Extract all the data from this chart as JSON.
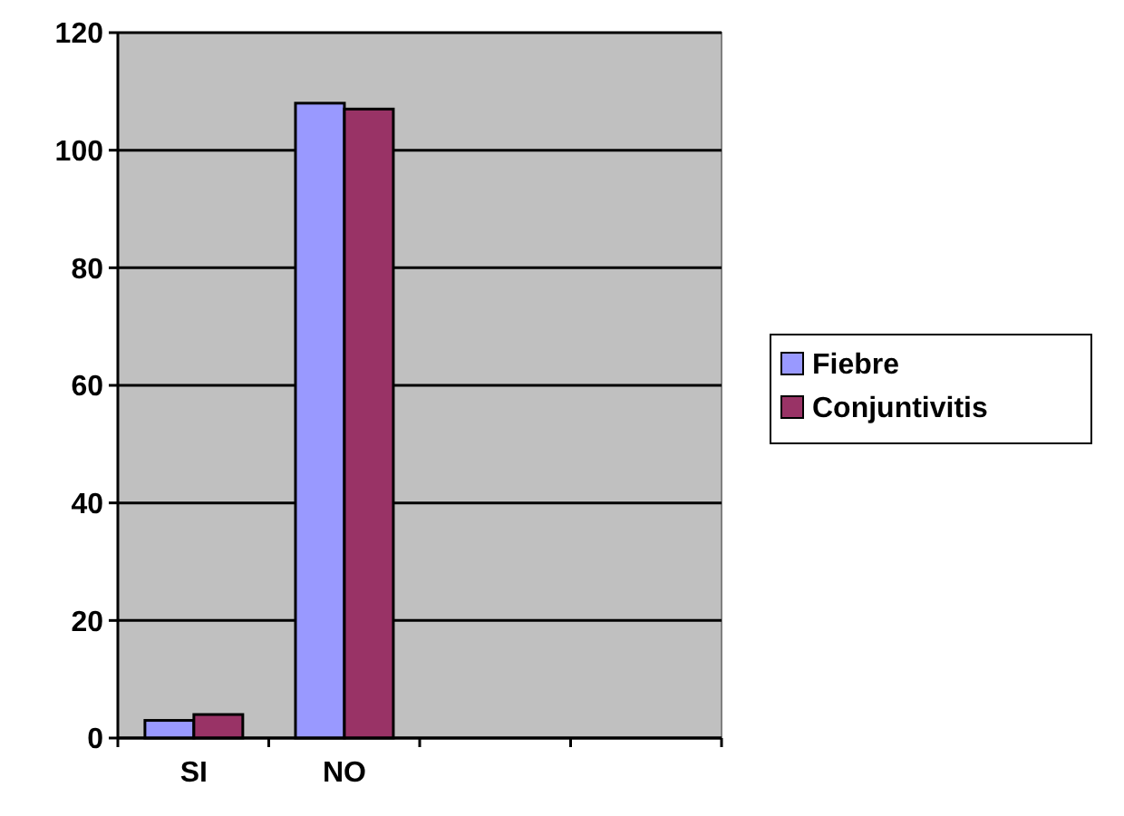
{
  "chart_data": {
    "type": "bar",
    "categories": [
      "SI",
      "NO",
      null,
      null
    ],
    "series": [
      {
        "name": "Fiebre",
        "color": "#9999ff",
        "values": [
          3,
          108,
          null,
          null
        ]
      },
      {
        "name": "Conjuntivitis",
        "color": "#993366",
        "values": [
          4,
          107,
          null,
          null
        ]
      }
    ],
    "ylim": [
      0,
      120
    ],
    "yticks": [
      0,
      20,
      40,
      60,
      80,
      100,
      120
    ],
    "grid": "y",
    "legend": "right"
  }
}
